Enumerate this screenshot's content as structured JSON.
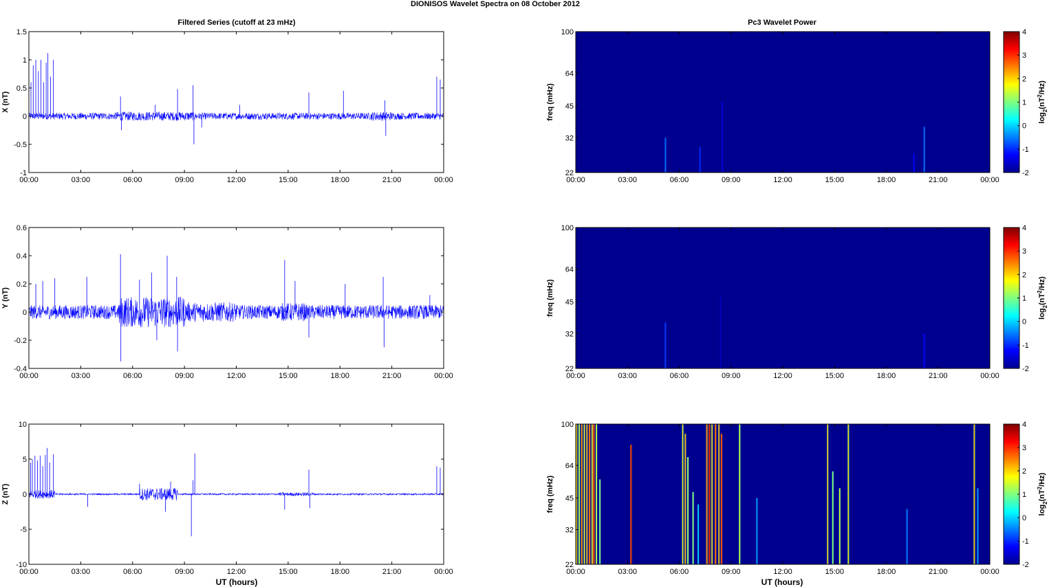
{
  "figure_title": "DIONISOS Wavelet Spectra on 08 October   2012",
  "left_title": "Filtered Series (cutoff at 23 mHz)",
  "right_title": "Pc3 Wavelet Power",
  "xlabel": "UT (hours)",
  "time_ticks": [
    "00:00",
    "03:00",
    "06:00",
    "09:00",
    "12:00",
    "15:00",
    "18:00",
    "21:00",
    "00:00"
  ],
  "colors": {
    "trace": "#0000ff",
    "spectrum_bg": "#00008f",
    "axes": "#000000"
  },
  "chart_data": [
    {
      "type": "line",
      "component": "X",
      "ylabel": "X (nT)",
      "ylim": [
        -1,
        1.5
      ],
      "yticks": [
        "1.5",
        "1",
        "0.5",
        "0",
        "-0.5",
        "-1"
      ],
      "yticks_values": [
        1.5,
        1,
        0.5,
        0,
        -0.5,
        -1
      ],
      "xlim_hours": [
        0,
        24
      ],
      "noise_amplitude_nT": 0.06,
      "activity": [
        {
          "from": 5.0,
          "to": 9.6,
          "amplitude": 0.08
        },
        {
          "from": 19.8,
          "to": 21.0,
          "amplitude": 0.08
        }
      ],
      "spikes": [
        {
          "t": 0.12,
          "v": 0.6
        },
        {
          "t": 0.25,
          "v": 0.9
        },
        {
          "t": 0.4,
          "v": 1.0
        },
        {
          "t": 0.55,
          "v": 0.8
        },
        {
          "t": 0.7,
          "v": 1.0
        },
        {
          "t": 0.85,
          "v": 0.6
        },
        {
          "t": 1.0,
          "v": 0.95
        },
        {
          "t": 1.1,
          "v": 1.12
        },
        {
          "t": 1.25,
          "v": 0.7
        },
        {
          "t": 1.42,
          "v": 1.0
        },
        {
          "t": 5.3,
          "v": 0.35
        },
        {
          "t": 5.35,
          "v": -0.25
        },
        {
          "t": 7.3,
          "v": 0.2
        },
        {
          "t": 8.6,
          "v": 0.48
        },
        {
          "t": 9.5,
          "v": 0.55
        },
        {
          "t": 9.55,
          "v": -0.5
        },
        {
          "t": 10.0,
          "v": -0.2
        },
        {
          "t": 12.2,
          "v": 0.2
        },
        {
          "t": 16.2,
          "v": 0.42
        },
        {
          "t": 18.2,
          "v": 0.45
        },
        {
          "t": 20.6,
          "v": 0.28
        },
        {
          "t": 20.65,
          "v": -0.35
        },
        {
          "t": 23.6,
          "v": 0.7
        },
        {
          "t": 23.8,
          "v": 0.65
        }
      ]
    },
    {
      "type": "line",
      "component": "Y",
      "ylabel": "Y (nT)",
      "ylim": [
        -0.4,
        0.6
      ],
      "yticks": [
        "0.6",
        "0.4",
        "0.2",
        "0",
        "-0.2",
        "-0.4"
      ],
      "yticks_values": [
        0.6,
        0.4,
        0.2,
        0,
        -0.2,
        -0.4
      ],
      "xlim_hours": [
        0,
        24
      ],
      "noise_amplitude_nT": 0.05,
      "activity": [
        {
          "from": 5.2,
          "to": 9.0,
          "amplitude": 0.11
        },
        {
          "from": 9.0,
          "to": 12.0,
          "amplitude": 0.07
        },
        {
          "from": 14.5,
          "to": 16.0,
          "amplitude": 0.065
        }
      ],
      "spikes": [
        {
          "t": 0.4,
          "v": 0.2
        },
        {
          "t": 0.8,
          "v": 0.22
        },
        {
          "t": 1.5,
          "v": 0.24
        },
        {
          "t": 3.35,
          "v": 0.25
        },
        {
          "t": 5.3,
          "v": 0.41
        },
        {
          "t": 5.32,
          "v": -0.35
        },
        {
          "t": 6.4,
          "v": 0.23
        },
        {
          "t": 7.1,
          "v": 0.28
        },
        {
          "t": 7.4,
          "v": -0.2
        },
        {
          "t": 8.0,
          "v": 0.4
        },
        {
          "t": 8.55,
          "v": 0.25
        },
        {
          "t": 8.6,
          "v": -0.28
        },
        {
          "t": 14.8,
          "v": 0.37
        },
        {
          "t": 15.4,
          "v": 0.22
        },
        {
          "t": 16.2,
          "v": -0.18
        },
        {
          "t": 18.3,
          "v": 0.2
        },
        {
          "t": 20.5,
          "v": 0.25
        },
        {
          "t": 20.55,
          "v": -0.25
        },
        {
          "t": 23.2,
          "v": 0.12
        }
      ]
    },
    {
      "type": "line",
      "component": "Z",
      "ylabel": "Z (nT)",
      "ylim": [
        -10,
        10
      ],
      "yticks": [
        "10",
        "5",
        "0",
        "-5",
        "-10"
      ],
      "yticks_values": [
        10,
        5,
        0,
        -5,
        -10
      ],
      "xlim_hours": [
        0,
        24
      ],
      "noise_amplitude_nT": 0.12,
      "activity": [
        {
          "from": 0.0,
          "to": 1.5,
          "amplitude": 0.6
        },
        {
          "from": 6.4,
          "to": 8.6,
          "amplitude": 0.9
        },
        {
          "from": 14.5,
          "to": 16.5,
          "amplitude": 0.25
        }
      ],
      "spikes": [
        {
          "t": 0.1,
          "v": 4.5
        },
        {
          "t": 0.2,
          "v": 5.0
        },
        {
          "t": 0.35,
          "v": 5.5
        },
        {
          "t": 0.5,
          "v": 4.8
        },
        {
          "t": 0.65,
          "v": 5.5
        },
        {
          "t": 0.8,
          "v": 4.0
        },
        {
          "t": 0.95,
          "v": 5.6
        },
        {
          "t": 1.05,
          "v": 6.6
        },
        {
          "t": 1.2,
          "v": 4.5
        },
        {
          "t": 1.42,
          "v": 5.7
        },
        {
          "t": 3.4,
          "v": -1.8
        },
        {
          "t": 6.4,
          "v": 1.5
        },
        {
          "t": 7.9,
          "v": -2.5
        },
        {
          "t": 8.2,
          "v": 1.8
        },
        {
          "t": 9.4,
          "v": -6.0
        },
        {
          "t": 9.5,
          "v": 2.0
        },
        {
          "t": 9.6,
          "v": 5.8
        },
        {
          "t": 14.8,
          "v": -2.2
        },
        {
          "t": 16.2,
          "v": 3.5
        },
        {
          "t": 16.25,
          "v": -2.0
        },
        {
          "t": 23.6,
          "v": 4.0
        },
        {
          "t": 23.8,
          "v": 3.8
        }
      ]
    },
    {
      "type": "heatmap",
      "component": "X",
      "ylabel": "freq (mHz)",
      "ylim_mHz": [
        22,
        100
      ],
      "yscale": "log",
      "yticks": [
        "100",
        "64",
        "45",
        "32",
        "22"
      ],
      "yticks_values": [
        100,
        64,
        45,
        32,
        22
      ],
      "xlim_hours": [
        0,
        24
      ],
      "colorbar": {
        "label_base": "log",
        "label_sub": "2",
        "label_open": "(nT",
        "label_sup": "2",
        "label_close": "/Hz)",
        "range": [
          -2,
          4
        ],
        "ticks": [
          "4",
          "3",
          "2",
          "1",
          "0",
          "-1",
          "-2"
        ],
        "ticks_values": [
          4,
          3,
          2,
          1,
          0,
          -1,
          -2
        ]
      },
      "events": [
        {
          "t": 5.2,
          "fmax": 32,
          "power": -0.6
        },
        {
          "t": 7.2,
          "fmax": 29,
          "power": -1.0
        },
        {
          "t": 8.5,
          "fmax": 47,
          "power": -1.5
        },
        {
          "t": 19.6,
          "fmax": 27,
          "power": -1.3
        },
        {
          "t": 20.2,
          "fmax": 36,
          "power": -0.6
        }
      ]
    },
    {
      "type": "heatmap",
      "component": "Y",
      "ylabel": "freq (mHz)",
      "ylim_mHz": [
        22,
        100
      ],
      "yscale": "log",
      "yticks": [
        "100",
        "64",
        "45",
        "32",
        "22"
      ],
      "yticks_values": [
        100,
        64,
        45,
        32,
        22
      ],
      "xlim_hours": [
        0,
        24
      ],
      "colorbar": {
        "label_base": "log",
        "label_sub": "2",
        "label_open": "(nT",
        "label_sup": "2",
        "label_close": "/Hz)",
        "range": [
          -2,
          4
        ],
        "ticks": [
          "4",
          "3",
          "2",
          "1",
          "0",
          "-1",
          "-2"
        ],
        "ticks_values": [
          4,
          3,
          2,
          1,
          0,
          -1,
          -2
        ]
      },
      "events": [
        {
          "t": 5.2,
          "fmax": 36,
          "power": -0.9
        },
        {
          "t": 8.4,
          "fmax": 48,
          "power": -1.7
        },
        {
          "t": 20.2,
          "fmax": 32,
          "power": -1.2
        }
      ]
    },
    {
      "type": "heatmap",
      "component": "Z",
      "ylabel": "freq (mHz)",
      "ylim_mHz": [
        22,
        100
      ],
      "yscale": "log",
      "yticks": [
        "100",
        "64",
        "45",
        "32",
        "22"
      ],
      "yticks_values": [
        100,
        64,
        45,
        32,
        22
      ],
      "xlim_hours": [
        0,
        24
      ],
      "colorbar": {
        "label_base": "log",
        "label_sub": "2",
        "label_open": "(nT",
        "label_sup": "2",
        "label_close": "/Hz)",
        "range": [
          -2,
          4
        ],
        "ticks": [
          "4",
          "3",
          "2",
          "1",
          "0",
          "-1",
          "-2"
        ],
        "ticks_values": [
          4,
          3,
          2,
          1,
          0,
          -1,
          -2
        ]
      },
      "events": [
        {
          "t": 0.05,
          "fmax": 100,
          "power": 1.0
        },
        {
          "t": 0.2,
          "fmax": 100,
          "power": 0.5
        },
        {
          "t": 0.35,
          "fmax": 100,
          "power": 1.5
        },
        {
          "t": 0.5,
          "fmax": 100,
          "power": 0.8
        },
        {
          "t": 0.65,
          "fmax": 100,
          "power": 1.2
        },
        {
          "t": 0.8,
          "fmax": 100,
          "power": 1.8
        },
        {
          "t": 0.95,
          "fmax": 100,
          "power": 1.0
        },
        {
          "t": 1.05,
          "fmax": 100,
          "power": 2.0
        },
        {
          "t": 1.2,
          "fmax": 100,
          "power": 0.6
        },
        {
          "t": 1.4,
          "fmax": 55,
          "power": 0.2
        },
        {
          "t": 3.2,
          "fmax": 80,
          "power": 2.2
        },
        {
          "t": 6.2,
          "fmax": 100,
          "power": 0.8
        },
        {
          "t": 6.35,
          "fmax": 90,
          "power": 1.2
        },
        {
          "t": 6.5,
          "fmax": 70,
          "power": 0.4
        },
        {
          "t": 6.8,
          "fmax": 48,
          "power": 0.2
        },
        {
          "t": 7.1,
          "fmax": 42,
          "power": 0.0
        },
        {
          "t": 7.6,
          "fmax": 100,
          "power": 1.5
        },
        {
          "t": 7.75,
          "fmax": 100,
          "power": 2.2
        },
        {
          "t": 7.9,
          "fmax": 100,
          "power": 1.0
        },
        {
          "t": 8.1,
          "fmax": 100,
          "power": 1.8
        },
        {
          "t": 8.3,
          "fmax": 100,
          "power": 1.2
        },
        {
          "t": 8.45,
          "fmax": 90,
          "power": 2.0
        },
        {
          "t": 9.5,
          "fmax": 100,
          "power": 0.5
        },
        {
          "t": 10.5,
          "fmax": 45,
          "power": -0.3
        },
        {
          "t": 14.6,
          "fmax": 100,
          "power": 1.0
        },
        {
          "t": 14.9,
          "fmax": 60,
          "power": 0.2
        },
        {
          "t": 15.3,
          "fmax": 50,
          "power": 0.6
        },
        {
          "t": 15.8,
          "fmax": 100,
          "power": 0.8
        },
        {
          "t": 19.2,
          "fmax": 40,
          "power": -0.5
        },
        {
          "t": 23.1,
          "fmax": 100,
          "power": 1.0
        },
        {
          "t": 23.3,
          "fmax": 50,
          "power": -0.3
        }
      ]
    }
  ]
}
